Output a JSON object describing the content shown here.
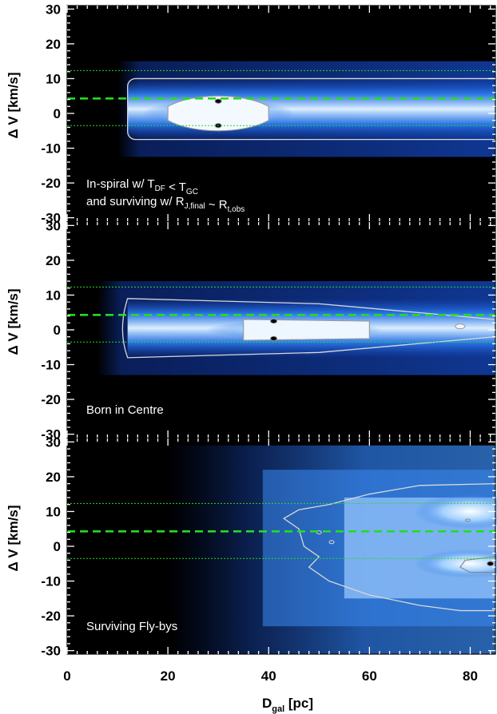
{
  "chart_data": {
    "type": "heatmap",
    "x_axis": {
      "label_main": "D",
      "label_sub": "gal",
      "label_unit": "[pc]",
      "ticks": [
        0,
        20,
        40,
        60,
        80
      ],
      "range": [
        0,
        85
      ]
    },
    "y_axis": {
      "label": "Δ V  [km/s]",
      "ticks": [
        30,
        20,
        10,
        0,
        -10,
        -20,
        -30
      ],
      "range": [
        -31,
        31
      ]
    },
    "reference_lines": [
      {
        "y": 12.3,
        "style": "dotted",
        "color": "#22dd22"
      },
      {
        "y": 4.3,
        "style": "dashed",
        "color": "#22dd22"
      },
      {
        "y": -3.5,
        "style": "dotted",
        "color": "#22dd22"
      }
    ],
    "panels": [
      {
        "id": "inspiral",
        "annotation_lines": [
          [
            {
              "t": "In-spiral w/ T"
            },
            {
              "t": "DF",
              "sub": true
            },
            {
              "t": " < T"
            },
            {
              "t": "GC",
              "sub": true
            }
          ],
          [
            {
              "t": "and surviving w/ R"
            },
            {
              "t": "J,final",
              "sub": true
            },
            {
              "t": " ~ R"
            },
            {
              "t": "t,obs",
              "sub": true
            }
          ]
        ],
        "density_x_range": [
          10,
          85
        ],
        "outer_contour_x_range": [
          12,
          85
        ],
        "outer_contour_vrange": [
          -7.5,
          10
        ],
        "peak_dv_points": [
          {
            "x": 30,
            "dv": 3.5
          },
          {
            "x": 30,
            "dv": -3.5
          }
        ]
      },
      {
        "id": "centre",
        "annotation_lines": [
          [
            {
              "t": "Born in Centre"
            }
          ]
        ],
        "density_x_range": [
          6,
          85
        ],
        "outer_contour_x_range": [
          12,
          85
        ],
        "outer_contour_vrange": [
          -8,
          9
        ],
        "peak_dv_points": [
          {
            "x": 41,
            "dv": 2.5
          },
          {
            "x": 41,
            "dv": -2.5
          }
        ]
      },
      {
        "id": "flyby",
        "annotation_lines": [
          [
            {
              "t": "Surviving Fly-bys"
            }
          ]
        ],
        "density_x_range": [
          20,
          85
        ],
        "outer_contour_x_range": [
          42,
          85
        ],
        "outer_contour_vrange": [
          -19,
          18
        ],
        "peak_dv_points": [
          {
            "x": 84,
            "dv": -5
          }
        ]
      }
    ],
    "colors": {
      "background": "#000000",
      "density_low": "#0a1f66",
      "density_mid": "#1f6fe8",
      "density_high": "#ffffff",
      "contour": "#d8d8d8",
      "reference": "#22dd22"
    }
  }
}
